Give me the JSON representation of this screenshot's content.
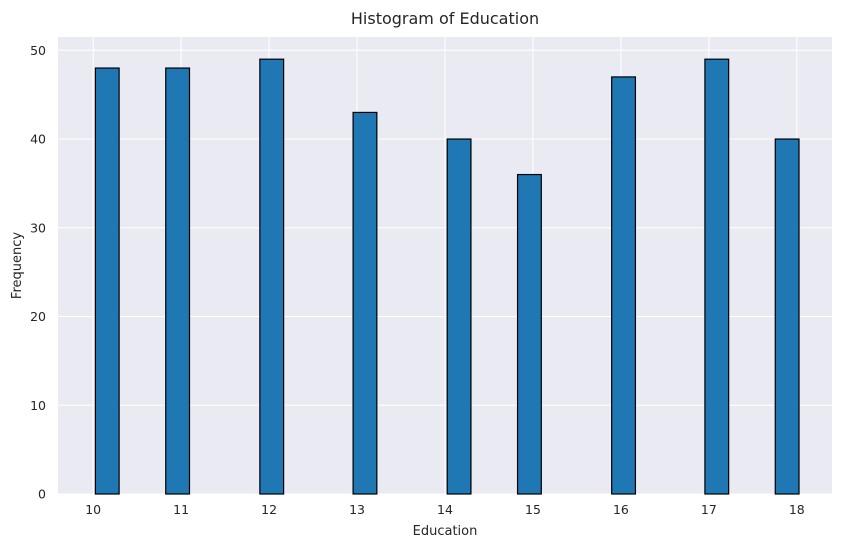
{
  "chart_data": {
    "type": "bar",
    "title": "Histogram of Education",
    "xlabel": "Education",
    "ylabel": "Frequency",
    "x_ticks": [
      "10",
      "11",
      "12",
      "13",
      "14",
      "15",
      "16",
      "17",
      "18"
    ],
    "y_ticks": [
      "0",
      "10",
      "20",
      "30",
      "40",
      "50"
    ],
    "xlim": [
      9.6,
      18.4
    ],
    "ylim": [
      0,
      51.5
    ],
    "bin_width": 0.27,
    "series": [
      {
        "bins": [
          {
            "x": 10.16,
            "value": 48
          },
          {
            "x": 10.96,
            "value": 48
          },
          {
            "x": 12.03,
            "value": 49
          },
          {
            "x": 13.09,
            "value": 43
          },
          {
            "x": 14.16,
            "value": 40
          },
          {
            "x": 14.96,
            "value": 36
          },
          {
            "x": 16.03,
            "value": 47
          },
          {
            "x": 17.09,
            "value": 49
          },
          {
            "x": 17.89,
            "value": 40
          }
        ]
      }
    ],
    "grid": true,
    "colors": {
      "bar_fill": "#1f77b4",
      "bar_edge": "#000000",
      "plot_background": "#eaeaf2",
      "grid": "#ffffff",
      "text": "#262626"
    }
  }
}
